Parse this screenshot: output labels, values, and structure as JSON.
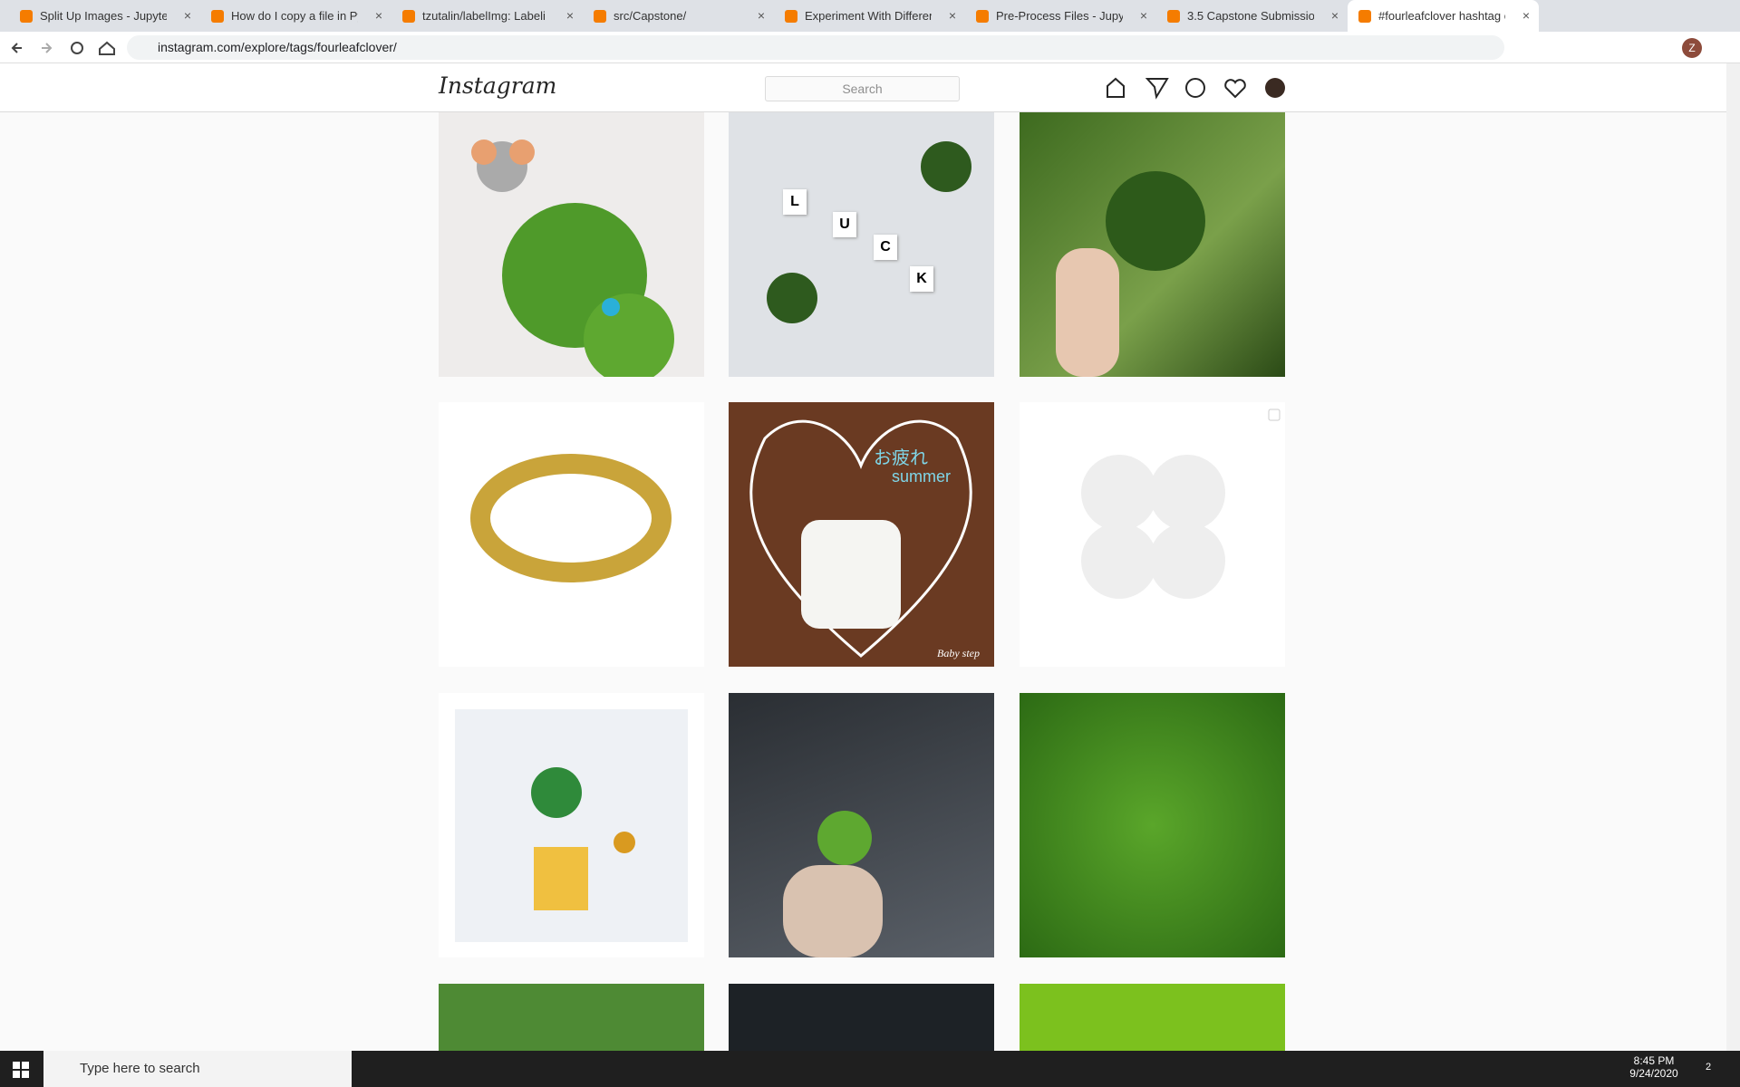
{
  "browser": {
    "tabs": [
      "Split Up Images - Jupyter N",
      "How do I copy a file in Pyth",
      "tzutalin/labelImg: Labeli",
      "src/Capstone/",
      "Experiment With Different I",
      "Pre-Process Files - Jupyter I",
      "3.5 Capstone Submission - I",
      "#fourleafclover hashtag on"
    ],
    "url": "instagram.com/explore/tags/fourleafclover/",
    "profile_initial": "Z"
  },
  "instagram": {
    "logo": "Instagram",
    "search_placeholder": "Search",
    "posts": [
      {
        "letters": [
          "L",
          "U",
          "C",
          "K"
        ]
      },
      {
        "caption": "Baby step",
        "heading": "お疲れ",
        "subheading": "summer"
      }
    ]
  },
  "taskbar": {
    "search": "Type here to search",
    "time": "8:45 PM",
    "date": "9/24/2020",
    "notifications": "2"
  }
}
